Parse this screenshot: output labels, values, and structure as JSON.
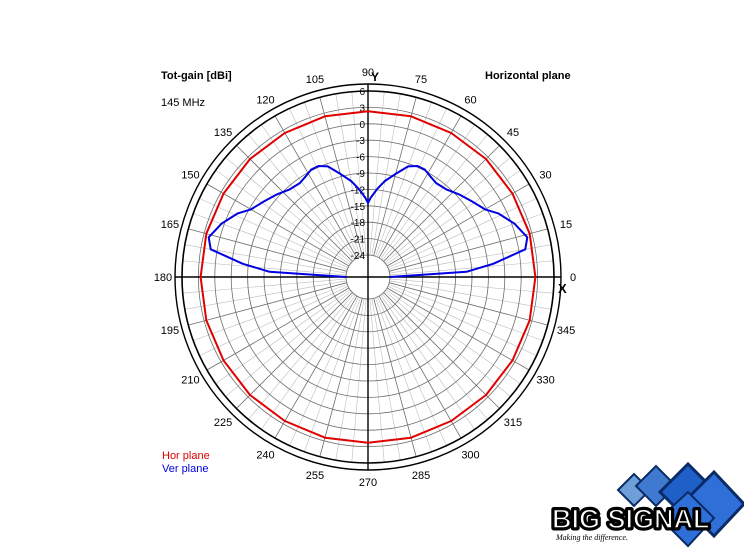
{
  "chart_data": {
    "type": "polar",
    "title": "Tot-gain [dBi]",
    "subtitle": "145 MHz",
    "plane_label": "Horizontal plane",
    "axis_x_label": "X",
    "axis_y_label": "Y",
    "rlim": [
      -24,
      6
    ],
    "r_ticks": [
      "6",
      "3",
      "0",
      "-3",
      "-6",
      "-9",
      "-12",
      "-15",
      "-18",
      "-21",
      "-24"
    ],
    "angle_ticks": [
      "0",
      "15",
      "30",
      "45",
      "60",
      "75",
      "90",
      "105",
      "120",
      "135",
      "150",
      "165",
      "180",
      "195",
      "210",
      "225",
      "240",
      "255",
      "270",
      "285",
      "300",
      "315",
      "330",
      "345"
    ],
    "series": [
      {
        "name": "Hor plane",
        "color": "#e00000",
        "angles": [
          0,
          15,
          30,
          45,
          60,
          75,
          90,
          105,
          120,
          135,
          150,
          165,
          180,
          195,
          210,
          225,
          240,
          255,
          270,
          285,
          300,
          315,
          330,
          345,
          360
        ],
        "values": [
          2.6,
          2.6,
          2.5,
          2.5,
          2.4,
          2.4,
          2.3,
          2.4,
          2.4,
          2.5,
          2.5,
          2.6,
          2.6,
          2.6,
          2.5,
          2.5,
          2.4,
          2.4,
          2.3,
          2.4,
          2.4,
          2.5,
          2.5,
          2.6,
          2.6
        ]
      },
      {
        "name": "Ver plane",
        "color": "#0000e0",
        "angles": [
          0,
          3,
          6,
          10,
          14,
          20,
          26,
          30,
          36,
          42,
          48,
          54,
          58,
          62,
          66,
          70,
          75,
          80,
          84,
          88,
          90,
          92,
          96,
          100,
          105,
          110,
          114,
          118,
          122,
          126,
          132,
          138,
          144,
          150,
          154,
          160,
          166,
          170,
          174,
          177,
          180
        ],
        "values": [
          -24,
          -10,
          -5,
          1.2,
          2.0,
          0.5,
          -1.5,
          -3.3,
          -4.5,
          -5.5,
          -6.5,
          -6.8,
          -6.4,
          -5.8,
          -5.8,
          -6.5,
          -8.5,
          -10.2,
          -11.8,
          -13.5,
          -14.5,
          -13.5,
          -11.8,
          -10.2,
          -8.5,
          -6.5,
          -5.8,
          -5.8,
          -6.4,
          -6.8,
          -6.5,
          -5.5,
          -4.5,
          -3.3,
          -1.5,
          0.5,
          2.0,
          1.2,
          -5,
          -10,
          -24
        ]
      }
    ],
    "legend": "bottom-left",
    "grid": true
  },
  "logo": {
    "text": "BIG SIGNAL",
    "tagline": "Making the difference."
  }
}
